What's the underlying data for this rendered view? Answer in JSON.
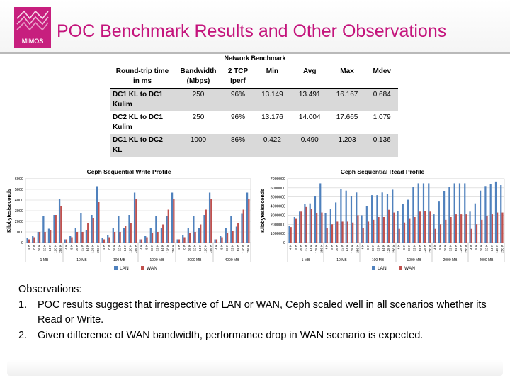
{
  "slide": {
    "title": "POC Benchmark Results and Other Observations",
    "logo_text": "MIMOS"
  },
  "table": {
    "caption": "Network Benchmark",
    "headers": [
      "Round-trip time in ms",
      "Bandwidth (Mbps)",
      "2 TCP Iperf",
      "Min",
      "Avg",
      "Max",
      "Mdev"
    ],
    "rows": [
      [
        "DC1 KL to DC1 Kulim",
        "250",
        "96%",
        "13.149",
        "13.491",
        "16.167",
        "0.684"
      ],
      [
        "DC2 KL to DC1 Kulim",
        "250",
        "96%",
        "13.176",
        "14.004",
        "17.665",
        "1.079"
      ],
      [
        "DC1 KL to DC2 KL",
        "1000",
        "86%",
        "0.422",
        "0.490",
        "1.203",
        "0.136"
      ]
    ]
  },
  "chart_data": [
    {
      "type": "bar",
      "title": "Ceph Sequential Write Profile",
      "xlabel": "",
      "ylabel": "Kilobytes/seconds",
      "ylim": [
        0,
        6000
      ],
      "yticks": [
        0,
        1000,
        2000,
        3000,
        4000,
        5000,
        6000
      ],
      "groups": [
        "1 MB",
        "10 MB",
        "100 MB",
        "1000 MB",
        "2000 MB",
        "4000 MB"
      ],
      "block_sizes": [
        "4 K",
        "8 K",
        "16 K",
        "32 K",
        "64 K",
        "128 K",
        "256 K"
      ],
      "legend": "bottom",
      "grid": true,
      "series": [
        {
          "name": "LAN",
          "color": "#4f81bd",
          "values": [
            400,
            600,
            1000,
            2500,
            1300,
            2600,
            4100,
            300,
            600,
            1400,
            2800,
            1200,
            2600,
            5300,
            400,
            700,
            1400,
            2500,
            1400,
            2600,
            4700,
            300,
            600,
            1400,
            2500,
            1400,
            2500,
            4700,
            300,
            700,
            1400,
            2500,
            1400,
            2600,
            4700,
            300,
            600,
            1400,
            2500,
            1500,
            2700,
            4700
          ]
        },
        {
          "name": "WAN",
          "color": "#c0504d",
          "values": [
            300,
            500,
            1000,
            1000,
            1200,
            2600,
            3400,
            300,
            500,
            1000,
            1000,
            1800,
            2300,
            3800,
            300,
            500,
            1000,
            1000,
            1600,
            1800,
            4100,
            300,
            500,
            900,
            1000,
            1700,
            3100,
            4100,
            300,
            500,
            900,
            1000,
            1700,
            3100,
            4100,
            300,
            500,
            900,
            1100,
            1800,
            3100,
            4100
          ]
        }
      ]
    },
    {
      "type": "bar",
      "title": "Ceph Sequential Read Profile",
      "xlabel": "",
      "ylabel": "Kilobytes/seconds",
      "ylim": [
        0,
        7000000
      ],
      "yticks": [
        0,
        1000000,
        2000000,
        3000000,
        4000000,
        5000000,
        6000000,
        7000000
      ],
      "groups": [
        "1 MB",
        "10 MB",
        "100 MB",
        "1000 MB",
        "2000 MB",
        "4000 MB"
      ],
      "block_sizes": [
        "4 K",
        "8 K",
        "16 K",
        "32 K",
        "64 K",
        "128 K",
        "256 K"
      ],
      "legend": "bottom",
      "grid": true,
      "series": [
        {
          "name": "LAN",
          "color": "#4f81bd",
          "values": [
            1800000,
            2800000,
            3400000,
            4200000,
            4300000,
            5100000,
            6500000,
            3200000,
            3700000,
            4400000,
            5900000,
            5700000,
            5100000,
            5500000,
            3000000,
            4000000,
            5200000,
            5200000,
            5500000,
            5300000,
            5800000,
            3500000,
            4200000,
            4700000,
            6100000,
            6500000,
            6500000,
            6500000,
            3100000,
            4500000,
            5600000,
            6100000,
            6500000,
            6500000,
            6500000,
            3400000,
            4300000,
            5700000,
            6200000,
            6400000,
            6700000,
            6300000
          ]
        },
        {
          "name": "WAN",
          "color": "#c0504d",
          "values": [
            1700000,
            2600000,
            3400000,
            3900000,
            3700000,
            3200000,
            3300000,
            1600000,
            2000000,
            2300000,
            2300000,
            2300000,
            2200000,
            3000000,
            1600000,
            2300000,
            2500000,
            2800000,
            2800000,
            3600000,
            3300000,
            1500000,
            2200000,
            2600000,
            2800000,
            3400000,
            3500000,
            3400000,
            1500000,
            2000000,
            2500000,
            2800000,
            3100000,
            3100000,
            3100000,
            1500000,
            2000000,
            2500000,
            2900000,
            3100000,
            3300000,
            3300000
          ]
        }
      ]
    }
  ],
  "observations": {
    "heading": "Observations:",
    "items": [
      {
        "num": "1.",
        "text": "POC results suggest that irrespective of LAN or WAN, Ceph scaled well in all scenarios whether its Read or Write."
      },
      {
        "num": "2.",
        "text": "Given difference of WAN bandwidth, performance drop in WAN scenario is expected."
      }
    ]
  }
}
